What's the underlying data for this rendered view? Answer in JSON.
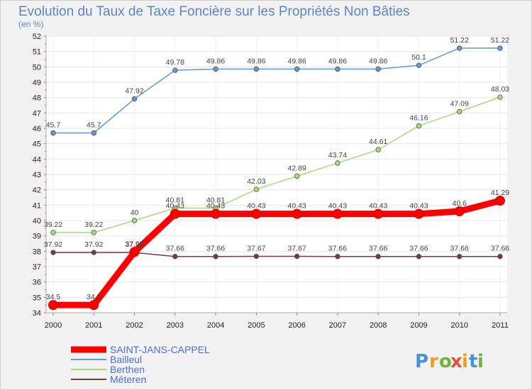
{
  "chart_data": {
    "type": "line",
    "title": "Evolution du Taux de Taxe Foncière sur les Propriétés Non Bâties",
    "subtitle": "(en %)",
    "x": [
      "2000",
      "2001",
      "2002",
      "2003",
      "2004",
      "2005",
      "2006",
      "2007",
      "2008",
      "2009",
      "2010",
      "2011"
    ],
    "ylim": [
      34,
      52
    ],
    "yticks": [
      34,
      35,
      36,
      37,
      38,
      39,
      40,
      41,
      42,
      43,
      44,
      45,
      46,
      47,
      48,
      49,
      50,
      51,
      52
    ],
    "legend_position": "bottom-left",
    "series": [
      {
        "name": "SAINT-JANS-CAPPEL",
        "color": "#ff0000",
        "values": [
          34.5,
          34.5,
          37.95,
          40.43,
          40.43,
          40.43,
          40.43,
          40.43,
          40.43,
          40.43,
          40.6,
          41.29
        ],
        "labels": [
          "34.5",
          "34.5",
          "37.95",
          "40.43",
          "40.43",
          "40.43",
          "40.43",
          "40.43",
          "40.43",
          "40.43",
          "40.6",
          "41.29"
        ]
      },
      {
        "name": "Bailleul",
        "color": "#5e9bd1",
        "values": [
          45.7,
          45.7,
          47.92,
          49.78,
          49.86,
          49.86,
          49.86,
          49.86,
          49.86,
          50.1,
          51.22,
          51.22
        ],
        "labels": [
          "45.7",
          "45.7",
          "47.92",
          "49.78",
          "49.86",
          "49.86",
          "49.86",
          "49.86",
          "49.86",
          "50.1",
          "51.22",
          "51.22"
        ]
      },
      {
        "name": "Berthen",
        "color": "#a6dd76",
        "values": [
          39.22,
          39.22,
          40,
          40.81,
          40.81,
          42.03,
          42.89,
          43.74,
          44.61,
          46.16,
          47.09,
          48.03
        ],
        "labels": [
          "39.22",
          "39.22",
          "40",
          "40.81",
          "40.81",
          "42.03",
          "42.89",
          "43.74",
          "44.61",
          "46.16",
          "47.09",
          "48.03"
        ]
      },
      {
        "name": "Méteren",
        "color": "#7b3a3a",
        "values": [
          37.92,
          37.92,
          37.92,
          37.66,
          37.66,
          37.67,
          37.67,
          37.66,
          37.66,
          37.66,
          37.66,
          37.66
        ],
        "labels": [
          "37.92",
          "37.92",
          "37.92",
          "37.66",
          "37.66",
          "37.67",
          "37.67",
          "37.66",
          "37.66",
          "37.66",
          "37.66",
          "37.66"
        ]
      }
    ]
  },
  "brand": {
    "letters": [
      "P",
      "r",
      "o",
      "x",
      "i",
      "t",
      "i"
    ],
    "colors": [
      "#4a90d9",
      "#f29b1d",
      "#6cb33f",
      "#e94e3c",
      "#f29b1d",
      "#4a90d9",
      "#6cb33f"
    ]
  }
}
